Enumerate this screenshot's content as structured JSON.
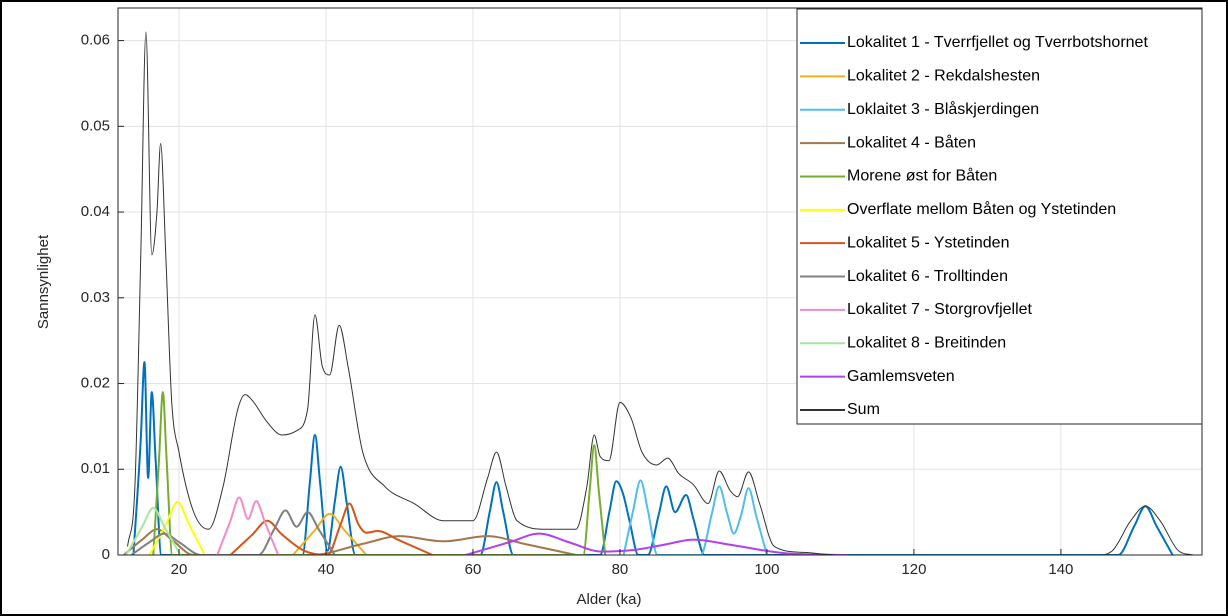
{
  "chart_data": {
    "type": "line",
    "xlabel": "Alder (ka)",
    "ylabel": "Sannsynlighet",
    "xlim": [
      11.7,
      159.2
    ],
    "ylim": [
      0,
      0.0638
    ],
    "xticks": [
      20,
      40,
      60,
      80,
      100,
      120,
      140
    ],
    "yticks": [
      0,
      0.01,
      0.02,
      0.03,
      0.04,
      0.05,
      0.06
    ],
    "grid": true,
    "legend": "upper right",
    "series": [
      {
        "name": "Lokalitet 1 - Tverrfjellet og Tverrbotshornet",
        "color": "#0072BD",
        "x": [
          13.8,
          14.8,
          15.3,
          15.8,
          16.3,
          16.8,
          17.6,
          36.8,
          37.8,
          38.5,
          39.2,
          40.2,
          41.2,
          42,
          42.8,
          44,
          61,
          62.3,
          63.2,
          64.1,
          65.5,
          77.3,
          78.6,
          79.5,
          80.4,
          81.3,
          82.5,
          83.8,
          85.3,
          86.3,
          87.5,
          89,
          90,
          91.5,
          147.8,
          150,
          151.5,
          153,
          155.2
        ],
        "values": [
          0,
          0.0135,
          0.0225,
          0.009,
          0.019,
          0.0114,
          0,
          0,
          0.0084,
          0.014,
          0.0084,
          0.0005,
          0.0062,
          0.0103,
          0.0062,
          0,
          0,
          0.0051,
          0.0085,
          0.0051,
          0,
          0,
          0.0052,
          0.0086,
          0.0072,
          0.004,
          0,
          0,
          0.0048,
          0.008,
          0.005,
          0.007,
          0.0042,
          0,
          0,
          0.0034,
          0.0057,
          0.0034,
          0
        ]
      },
      {
        "name": "Lokalitet 2 - Rekdalshesten",
        "color": "#EDB120",
        "x": [
          35.5,
          38.5,
          40.5,
          42.5,
          45.5
        ],
        "values": [
          0,
          0.0029,
          0.0048,
          0.0029,
          0
        ]
      },
      {
        "name": "Loklaitet 3 - Blåskjerdingen",
        "color": "#4DBEEE",
        "x": [
          80.5,
          81.8,
          82.8,
          83.8,
          85.1,
          91,
          92.5,
          93.5,
          94.6,
          95.5,
          96.5,
          97.5,
          98.5,
          100
        ],
        "values": [
          0,
          0.0052,
          0.0087,
          0.0052,
          0,
          0,
          0.0048,
          0.008,
          0.0048,
          0.0025,
          0.0047,
          0.0078,
          0.0047,
          0
        ]
      },
      {
        "name": "Lokalitet 4 - Båten",
        "color": "#A2774D",
        "x": [
          12.5,
          15,
          17,
          19,
          22,
          38,
          45,
          50,
          56,
          62,
          67,
          74
        ],
        "values": [
          0,
          0.0018,
          0.003,
          0.0018,
          0,
          0,
          0.0013,
          0.0022,
          0.0016,
          0.0022,
          0.0013,
          0
        ]
      },
      {
        "name": "Morene øst for Båten",
        "color": "#77AC30",
        "x": [
          16.5,
          17.3,
          17.8,
          18.3,
          19.1,
          75,
          75.9,
          76.5,
          77.1,
          78
        ],
        "values": [
          0,
          0.0114,
          0.019,
          0.0114,
          0,
          0,
          0.0077,
          0.0128,
          0.0077,
          0
        ]
      },
      {
        "name": "Overflate mellom Båten og Ystetinden",
        "color": "#FFFF00",
        "x": [
          16,
          18.3,
          19.8,
          21.3,
          23.5
        ],
        "values": [
          0,
          0.0037,
          0.0062,
          0.0037,
          0
        ]
      },
      {
        "name": "Lokalitet 5 - Ystetinden",
        "color": "#D95319",
        "x": [
          27,
          30,
          32,
          34,
          37,
          40.2,
          42,
          43.2,
          44.4,
          45.5,
          47,
          50,
          54.5
        ],
        "values": [
          0,
          0.0024,
          0.004,
          0.0024,
          0.0005,
          0,
          0.0036,
          0.006,
          0.0036,
          0.0026,
          0.0028,
          0.0017,
          0
        ]
      },
      {
        "name": "Lokalitet 6 - Trolltinden",
        "color": "#808080",
        "x": [
          13.5,
          16,
          18,
          20,
          23,
          30.8,
          33,
          34.5,
          36,
          37.5,
          39,
          41.2
        ],
        "values": [
          0,
          0.0015,
          0.0025,
          0.0015,
          0,
          0,
          0.0031,
          0.0052,
          0.0033,
          0.005,
          0.003,
          0
        ]
      },
      {
        "name": "Lokalitet 7 - Storgrovfjellet",
        "color": "#F08CC8",
        "x": [
          25.2,
          27,
          28.2,
          29.4,
          30.5,
          31.7,
          33.5
        ],
        "values": [
          0,
          0.004,
          0.0067,
          0.0042,
          0.0063,
          0.0038,
          0
        ]
      },
      {
        "name": "Lokalitet 8 - Breitinden",
        "color": "#A8E6A0",
        "x": [
          12.8,
          15,
          16.5,
          18,
          20.2
        ],
        "values": [
          0,
          0.0033,
          0.0055,
          0.0033,
          0
        ]
      },
      {
        "name": "Gamlemsveten",
        "color": "#B040F0",
        "x": [
          59,
          65,
          69,
          73,
          77.5,
          82,
          86,
          90,
          95,
          102.5,
          111
        ],
        "values": [
          0,
          0.0015,
          0.0025,
          0.0015,
          0.0004,
          0.0006,
          0.0012,
          0.0018,
          0.0012,
          0.0002,
          0
        ]
      },
      {
        "name": "Sum",
        "color": "#333333",
        "x": [
          13,
          14,
          14.8,
          15.5,
          16.3,
          17,
          17.5,
          18.2,
          19,
          20,
          22,
          24,
          26,
          28,
          29,
          30,
          32,
          34,
          36,
          37.5,
          38.5,
          39.5,
          40.5,
          41.8,
          43,
          45,
          48,
          52,
          56,
          60,
          62,
          63.2,
          64.5,
          66,
          70,
          74,
          75.5,
          76.5,
          77.3,
          78.5,
          80,
          81.5,
          83,
          85,
          86.5,
          88,
          90,
          92,
          93.5,
          95,
          96,
          97.5,
          99,
          101,
          105,
          110,
          145,
          147,
          149.5,
          151.5,
          153.5,
          156,
          158
        ],
        "values": [
          0.001,
          0.008,
          0.035,
          0.061,
          0.035,
          0.04,
          0.048,
          0.035,
          0.018,
          0.012,
          0.005,
          0.003,
          0.008,
          0.017,
          0.0187,
          0.018,
          0.0155,
          0.014,
          0.0145,
          0.017,
          0.028,
          0.022,
          0.021,
          0.0268,
          0.022,
          0.012,
          0.008,
          0.006,
          0.004,
          0.004,
          0.009,
          0.012,
          0.008,
          0.004,
          0.003,
          0.003,
          0.008,
          0.014,
          0.0115,
          0.011,
          0.0178,
          0.016,
          0.012,
          0.0105,
          0.0113,
          0.0095,
          0.0082,
          0.006,
          0.0098,
          0.0075,
          0.0068,
          0.0097,
          0.006,
          0.001,
          0.0003,
          0,
          0,
          0.0005,
          0.004,
          0.0057,
          0.004,
          0.0005,
          0
        ]
      }
    ]
  }
}
